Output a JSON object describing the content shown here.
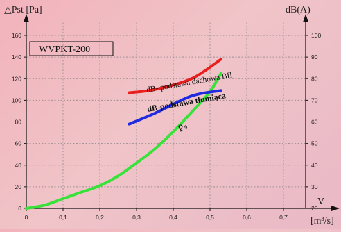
{
  "chart_data": {
    "type": "line",
    "title": "WVPKT-200",
    "xlabel": "[m³/s]",
    "x_axis_letter": "V",
    "ylabel_left": "△Pst  [Pa]",
    "ylabel_right": "dB(A)",
    "x_ticks": [
      "0",
      "0,1",
      "0,2",
      "0,3",
      "0,4",
      "0,5",
      "0,6",
      "0,7"
    ],
    "y_ticks_left": [
      "0",
      "20",
      "40",
      "60",
      "80",
      "100",
      "120",
      "140",
      "160"
    ],
    "y_ticks_right": [
      "20",
      "30",
      "40",
      "50",
      "60",
      "70",
      "80",
      "90",
      "100"
    ],
    "xlim": [
      0,
      0.7
    ],
    "ylim_left": [
      0,
      160
    ],
    "ylim_right": [
      20,
      100
    ],
    "grid": true,
    "series": [
      {
        "name": "Pst",
        "axis": "left",
        "color": "#38e23a",
        "x": [
          0,
          0.05,
          0.1,
          0.15,
          0.2,
          0.25,
          0.3,
          0.35,
          0.4,
          0.45,
          0.5,
          0.53
        ],
        "y": [
          0,
          3,
          9,
          15,
          21,
          30,
          42,
          55,
          71,
          89,
          108,
          125
        ]
      },
      {
        "name": "dB- podstawa dachowa BII",
        "axis": "right",
        "color": "#e82020",
        "x": [
          0.28,
          0.35,
          0.45,
          0.53
        ],
        "y": [
          73.5,
          75,
          80,
          89
        ]
      },
      {
        "name": "dB-podstawa tłumiąca",
        "axis": "right",
        "color": "#1f2be0",
        "x": [
          0.28,
          0.35,
          0.45,
          0.53
        ],
        "y": [
          59,
          64,
          72,
          74.5
        ]
      }
    ],
    "annotations": {
      "pst_label": "Pₛ",
      "red_label": "dB- podstawa dachowa BII",
      "blue_label": "dB-podstawa tłumiąca"
    }
  }
}
